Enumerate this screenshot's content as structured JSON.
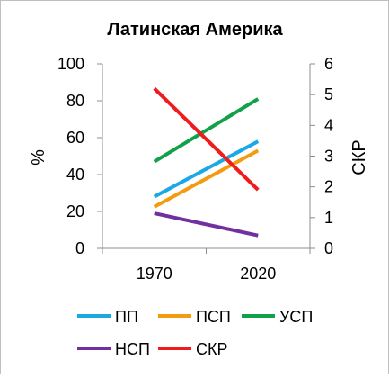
{
  "chart_data": {
    "type": "line",
    "title": "Латинская Америка",
    "xlabel": "",
    "ylabel": "%",
    "y2label": "СКР",
    "categories": [
      "1970",
      "2020"
    ],
    "ylim": [
      0,
      100
    ],
    "yticks": [
      "0",
      "20",
      "40",
      "60",
      "80",
      "100"
    ],
    "y2lim": [
      0,
      6
    ],
    "y2ticks": [
      "0",
      "1",
      "2",
      "3",
      "4",
      "5",
      "6"
    ],
    "series": [
      {
        "name": "ПП",
        "color": "#1BA9E6",
        "axis": "left",
        "values": [
          28,
          58
        ]
      },
      {
        "name": "ПСП",
        "color": "#F39C12",
        "axis": "left",
        "values": [
          22.5,
          53
        ]
      },
      {
        "name": "УСП",
        "color": "#12A14B",
        "axis": "left",
        "values": [
          47,
          81
        ]
      },
      {
        "name": "НСП",
        "color": "#7030A0",
        "axis": "left",
        "values": [
          19,
          7
        ]
      },
      {
        "name": "СКР",
        "color": "#EE1C1C",
        "axis": "right",
        "values": [
          5.2,
          1.9
        ]
      }
    ],
    "legend_position": "bottom",
    "grid": false
  }
}
